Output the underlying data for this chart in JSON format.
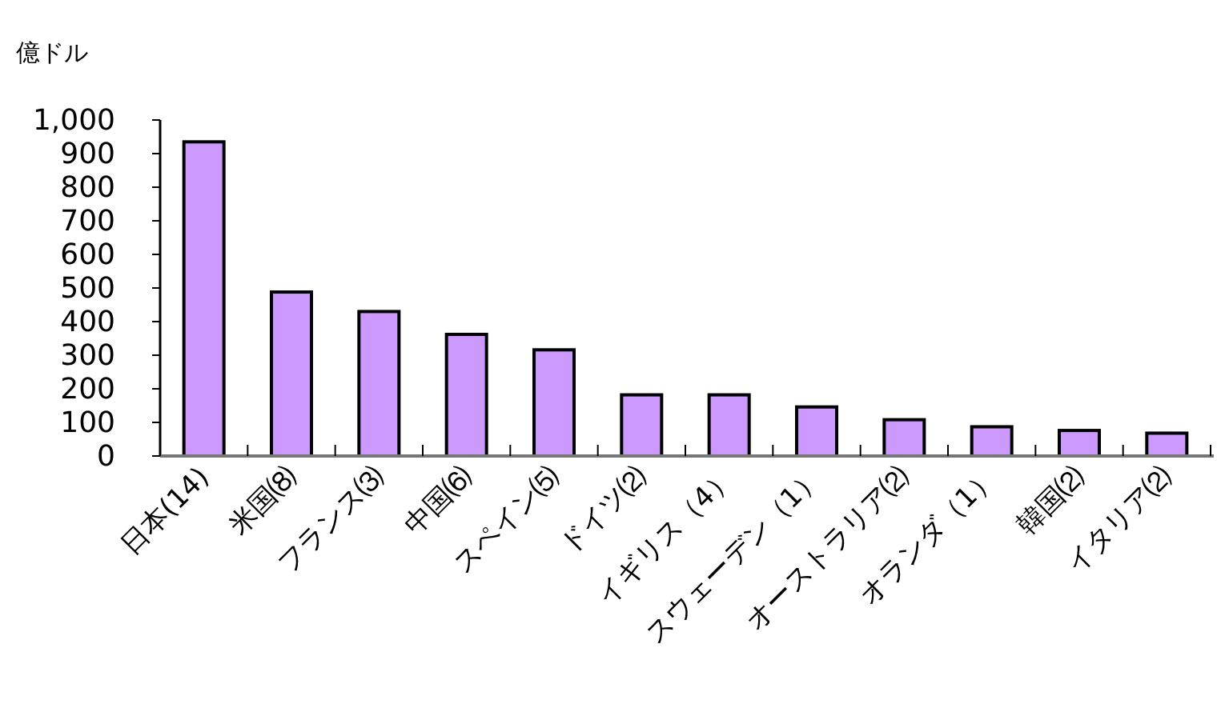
{
  "chart_data": {
    "type": "bar",
    "ylabel": "億ドル",
    "categories": [
      "日本(14)",
      "米国⑻",
      "フランス⑶",
      "中国⑹",
      "スペイン⑸",
      "ドイツ⑵",
      "イギリス（4）",
      "スウェーデン（1）",
      "オーストラリア⑵",
      "オランダ（1）",
      "韓国⑵",
      "イタリア⑵"
    ],
    "values": [
      935,
      488,
      430,
      362,
      316,
      182,
      182,
      146,
      108,
      87,
      76,
      68
    ],
    "color": "#cc99ff",
    "ylim": [
      0,
      1000
    ],
    "yticks": [
      0,
      100,
      200,
      300,
      400,
      500,
      600,
      700,
      800,
      900,
      {
        "value": 1000,
        "label": "1,000"
      }
    ],
    "grid": false
  }
}
